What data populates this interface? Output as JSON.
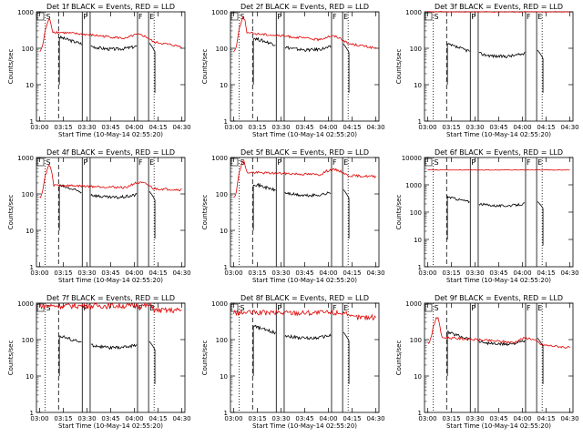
{
  "chart_data": [
    {
      "type": "line",
      "title": "Det 1f BLACK = Events, RED = LLD",
      "xlabel": "Start Time (10-May-14 02:55:20)",
      "ylabel": "Counts/sec",
      "yscale": "log",
      "ylim": [
        1,
        1000
      ],
      "xlim": [
        "03:00",
        "04:30"
      ],
      "xticks": [
        "03:00",
        "03:15",
        "03:30",
        "03:45",
        "04:00",
        "04:15",
        "04:30"
      ],
      "yticks": [
        "1",
        "10",
        "100",
        "1000"
      ],
      "markers": [
        "S",
        "P",
        "F",
        "E"
      ],
      "legend": "none",
      "grid": false,
      "series": [
        {
          "name": "Events",
          "color": "#000000",
          "points": [
            [
              3.29,
              "gap"
            ]
          ],
          "shape": "events",
          "level": 95
        },
        {
          "name": "LLD",
          "color": "#e00000",
          "shape": "lld-peak",
          "peak_value": 600,
          "base": 300,
          "end": 110
        }
      ]
    },
    {
      "type": "line",
      "title": "Det 2f BLACK = Events, RED = LLD",
      "xlabel": "Start Time (10-May-14 02:55:20)",
      "ylabel": "Counts/sec",
      "yscale": "log",
      "ylim": [
        1,
        1000
      ],
      "xlim": [
        "03:00",
        "04:30"
      ],
      "xticks": [
        "03:00",
        "03:15",
        "03:30",
        "03:45",
        "04:00",
        "04:15",
        "04:30"
      ],
      "yticks": [
        "1",
        "10",
        "100",
        "1000"
      ],
      "markers": [
        "S",
        "P",
        "F",
        "E"
      ],
      "legend": "none",
      "grid": false,
      "series": [
        {
          "name": "Events",
          "color": "#000000",
          "shape": "events",
          "level": 90
        },
        {
          "name": "LLD",
          "color": "#e00000",
          "shape": "lld-peak",
          "peak_value": 700,
          "base": 280,
          "end": 100
        }
      ]
    },
    {
      "type": "line",
      "title": "Det 3f BLACK = Events, RED = LLD",
      "xlabel": "Start Time (10-May-14 02:55:20)",
      "ylabel": "Counts/sec",
      "yscale": "log",
      "ylim": [
        1,
        1000
      ],
      "xlim": [
        "03:00",
        "04:30"
      ],
      "xticks": [
        "03:00",
        "03:15",
        "03:30",
        "03:45",
        "04:00",
        "04:15",
        "04:30"
      ],
      "yticks": [
        "1",
        "10",
        "100",
        "1000"
      ],
      "markers": [
        "S",
        "P",
        "F",
        "E"
      ],
      "legend": "none",
      "grid": false,
      "series": [
        {
          "name": "Events",
          "color": "#000000",
          "shape": "events",
          "level": 60
        },
        {
          "name": "LLD",
          "color": "#e00000",
          "shape": "lld-flat",
          "base": 1000
        }
      ]
    },
    {
      "type": "line",
      "title": "Det 4f BLACK = Events, RED = LLD",
      "xlabel": "Start Time (10-May-14 02:55:20)",
      "ylabel": "Counts/sec",
      "yscale": "log",
      "ylim": [
        1,
        1000
      ],
      "xlim": [
        "03:00",
        "04:30"
      ],
      "xticks": [
        "03:00",
        "03:15",
        "03:30",
        "03:45",
        "04:00",
        "04:15",
        "04:30"
      ],
      "yticks": [
        "1",
        "10",
        "100",
        "1000"
      ],
      "markers": [
        "S",
        "P",
        "F",
        "E"
      ],
      "legend": "none",
      "grid": false,
      "series": [
        {
          "name": "Events",
          "color": "#000000",
          "shape": "events",
          "level": 80
        },
        {
          "name": "LLD",
          "color": "#e00000",
          "shape": "lld-peak",
          "peak_value": 600,
          "base": 180,
          "end": 130
        }
      ]
    },
    {
      "type": "line",
      "title": "Det 5f BLACK = Events, RED = LLD",
      "xlabel": "Start Time (10-May-14 02:55:20)",
      "ylabel": "Counts/sec",
      "yscale": "log",
      "ylim": [
        1,
        1000
      ],
      "xlim": [
        "03:00",
        "04:30"
      ],
      "xticks": [
        "03:00",
        "03:15",
        "03:30",
        "03:45",
        "04:00",
        "04:15",
        "04:30"
      ],
      "yticks": [
        "1",
        "10",
        "100",
        "1000"
      ],
      "markers": [
        "S",
        "P",
        "F",
        "E"
      ],
      "legend": "none",
      "grid": false,
      "series": [
        {
          "name": "Events",
          "color": "#000000",
          "shape": "events",
          "level": 90
        },
        {
          "name": "LLD",
          "color": "#e00000",
          "shape": "lld-peak",
          "peak_value": 800,
          "base": 400,
          "end": 300
        }
      ]
    },
    {
      "type": "line",
      "title": "Det 6f BLACK = Events, RED = LLD",
      "xlabel": "Start Time (10-May-14 02:55:20)",
      "ylabel": "Counts/sec",
      "yscale": "log",
      "ylim": [
        1,
        10000
      ],
      "xlim": [
        "03:00",
        "04:30"
      ],
      "xticks": [
        "03:00",
        "03:15",
        "03:30",
        "03:45",
        "04:00",
        "04:15",
        "04:30"
      ],
      "yticks": [
        "1",
        "10",
        "100",
        "1000",
        "10000"
      ],
      "markers": [
        "S",
        "P",
        "F",
        "E"
      ],
      "legend": "none",
      "grid": false,
      "series": [
        {
          "name": "Events",
          "color": "#000000",
          "shape": "events",
          "level": 170
        },
        {
          "name": "LLD",
          "color": "#e00000",
          "shape": "lld-flat",
          "base": 3500
        }
      ]
    },
    {
      "type": "line",
      "title": "Det 7f BLACK = Events, RED = LLD",
      "xlabel": "Start Time (10-May-14 02:55:20)",
      "ylabel": "Counts/sec",
      "yscale": "log",
      "ylim": [
        1,
        1000
      ],
      "xlim": [
        "03:00",
        "04:30"
      ],
      "xticks": [
        "03:00",
        "03:15",
        "03:30",
        "03:45",
        "04:00",
        "04:15",
        "04:30"
      ],
      "yticks": [
        "1",
        "10",
        "100",
        "1000"
      ],
      "markers": [
        "S",
        "P",
        "F",
        "E"
      ],
      "legend": "none",
      "grid": false,
      "series": [
        {
          "name": "Events",
          "color": "#000000",
          "shape": "events",
          "level": 60
        },
        {
          "name": "LLD",
          "color": "#e00000",
          "shape": "lld-noisy",
          "base": 850
        }
      ]
    },
    {
      "type": "line",
      "title": "Det 8f BLACK = Events, RED = LLD",
      "xlabel": "Start Time (10-May-14 02:55:20)",
      "ylabel": "Counts/sec",
      "yscale": "log",
      "ylim": [
        1,
        1000
      ],
      "xlim": [
        "03:00",
        "04:30"
      ],
      "xticks": [
        "03:00",
        "03:15",
        "03:30",
        "03:45",
        "04:00",
        "04:15",
        "04:30"
      ],
      "yticks": [
        "1",
        "10",
        "100",
        "1000"
      ],
      "markers": [
        "S",
        "P",
        "F",
        "E"
      ],
      "legend": "none",
      "grid": false,
      "series": [
        {
          "name": "Events",
          "color": "#000000",
          "shape": "events",
          "level": 110
        },
        {
          "name": "LLD",
          "color": "#e00000",
          "shape": "lld-noisy",
          "base": 550
        }
      ]
    },
    {
      "type": "line",
      "title": "Det 9f BLACK = Events, RED = LLD",
      "xlabel": "Start Time (10-May-14 02:55:20)",
      "ylabel": "Counts/sec",
      "yscale": "log",
      "ylim": [
        1,
        1000
      ],
      "xlim": [
        "03:00",
        "04:30"
      ],
      "xticks": [
        "03:00",
        "03:15",
        "03:30",
        "03:45",
        "04:00",
        "04:15",
        "04:30"
      ],
      "yticks": [
        "1",
        "10",
        "100",
        "1000"
      ],
      "markers": [
        "S",
        "P",
        "F",
        "E"
      ],
      "legend": "none",
      "grid": false,
      "series": [
        {
          "name": "Events",
          "color": "#000000",
          "shape": "events",
          "level": 75
        },
        {
          "name": "LLD",
          "color": "#e00000",
          "shape": "lld-peak",
          "peak_value": 400,
          "base": 120,
          "end": 60
        }
      ]
    }
  ]
}
